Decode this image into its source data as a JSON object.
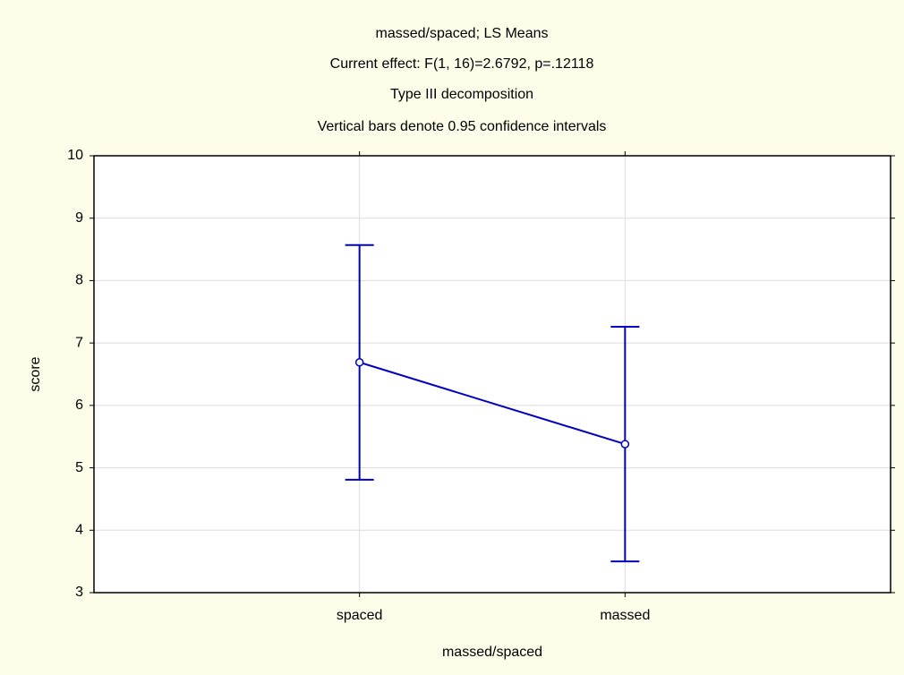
{
  "chart_data": {
    "type": "line",
    "title": "massed/spaced; LS Means",
    "subtitles": [
      "Current effect: F(1, 16)=2.6792, p=.12118",
      "Type III decomposition",
      "Vertical bars denote 0.95 confidence intervals"
    ],
    "xlabel": "massed/spaced",
    "ylabel": "score",
    "categories": [
      "spaced",
      "massed"
    ],
    "series": [
      {
        "name": "score",
        "color": "#0000c0",
        "values": [
          6.69,
          5.38
        ],
        "errors": [
          1.88,
          1.88
        ]
      }
    ],
    "ylim": [
      3,
      10
    ],
    "yticks": [
      3,
      4,
      5,
      6,
      7,
      8,
      9,
      10
    ],
    "grid": true
  }
}
